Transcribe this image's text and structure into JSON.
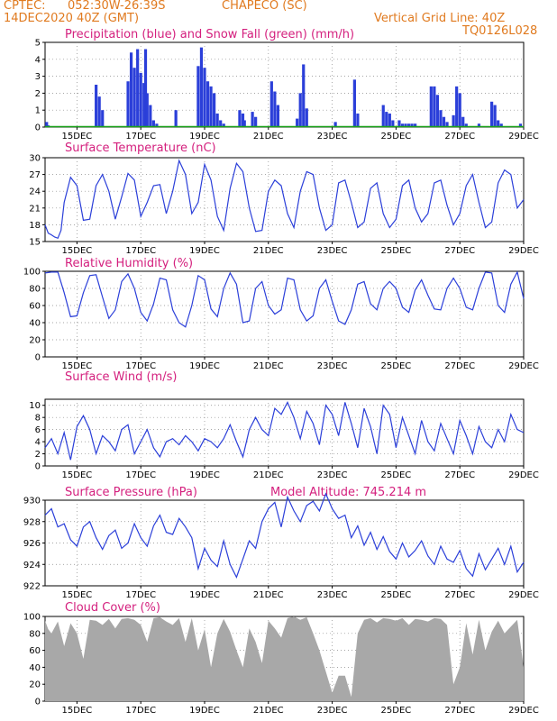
{
  "header": {
    "source": "CPTEC:",
    "coords": "052:30W-26:39S",
    "location": "CHAPECO (SC)",
    "run_time": "14DEC2020 40Z (GMT)",
    "grid_note": "Vertical Grid Line: 40Z",
    "code": "TQ0126L028"
  },
  "colors": {
    "header_text": "#e07a1f",
    "panel_title": "#d4207e",
    "series_line": "#2b3fd9",
    "snow": "#1aa31a",
    "cloud": "#a8a8a8",
    "grid": "#888888"
  },
  "x_axis": {
    "ticks": [
      "15DEC",
      "17DEC",
      "19DEC",
      "21DEC",
      "23DEC",
      "25DEC",
      "27DEC",
      "29DEC"
    ],
    "tick_days": [
      15,
      17,
      19,
      21,
      23,
      25,
      27,
      29
    ],
    "range": [
      14.0,
      29.0
    ]
  },
  "chart_data": [
    {
      "type": "bar",
      "title": "Precipitation (blue) and Snow Fall (green) (mm/h)",
      "ylim": [
        0,
        5
      ],
      "yticks": [
        0,
        1,
        2,
        3,
        4,
        5
      ],
      "grid": true,
      "series": [
        {
          "name": "Precipitation",
          "color": "#2b3fd9",
          "x": [
            14.05,
            14.1,
            15.6,
            15.7,
            15.8,
            16.6,
            16.7,
            16.8,
            16.9,
            17.0,
            17.1,
            17.15,
            17.2,
            17.3,
            17.4,
            17.5,
            18.1,
            18.8,
            18.9,
            19.0,
            19.1,
            19.2,
            19.3,
            19.4,
            19.5,
            19.6,
            20.1,
            20.2,
            20.25,
            20.5,
            20.6,
            21.1,
            21.2,
            21.3,
            21.9,
            22.0,
            22.1,
            22.2,
            23.1,
            23.7,
            23.8,
            24.6,
            24.7,
            24.8,
            24.9,
            25.1,
            25.2,
            25.3,
            25.4,
            25.5,
            25.6,
            26.1,
            26.2,
            26.3,
            26.4,
            26.5,
            26.6,
            26.8,
            26.9,
            27.0,
            27.1,
            27.2,
            27.6,
            28.0,
            28.1,
            28.2,
            28.3,
            28.9
          ],
          "values": [
            0.3,
            0.1,
            2.5,
            1.8,
            1.0,
            2.7,
            4.4,
            3.5,
            4.6,
            3.2,
            2.6,
            4.6,
            2.0,
            1.3,
            0.4,
            0.2,
            1.0,
            3.6,
            4.7,
            3.5,
            2.7,
            2.4,
            2.0,
            0.8,
            0.4,
            0.2,
            1.0,
            0.8,
            0.4,
            0.9,
            0.6,
            2.7,
            2.1,
            1.3,
            0.5,
            2.0,
            3.7,
            1.1,
            0.3,
            2.8,
            0.8,
            1.3,
            0.9,
            0.8,
            0.4,
            0.4,
            0.2,
            0.2,
            0.2,
            0.2,
            0.2,
            2.4,
            2.4,
            1.9,
            1.0,
            0.6,
            0.3,
            0.7,
            2.4,
            2.0,
            0.6,
            0.2,
            0.2,
            1.5,
            1.3,
            0.4,
            0.2,
            0.2
          ]
        },
        {
          "name": "Snow Fall",
          "color": "#1aa31a",
          "x": [
            14.0,
            29.0
          ],
          "values": [
            0,
            0
          ]
        }
      ]
    },
    {
      "type": "line",
      "title": "Surface Temperature (nC)",
      "ylim": [
        15,
        30
      ],
      "yticks": [
        15,
        18,
        21,
        24,
        27,
        30
      ],
      "grid": true,
      "series": [
        {
          "color": "#2b3fd9",
          "x": [
            14.0,
            14.1,
            14.2,
            14.3,
            14.4,
            14.5,
            14.6,
            14.8,
            15.0,
            15.2,
            15.4,
            15.6,
            15.8,
            16.0,
            16.2,
            16.4,
            16.6,
            16.8,
            17.0,
            17.2,
            17.4,
            17.6,
            17.8,
            18.0,
            18.2,
            18.4,
            18.6,
            18.8,
            19.0,
            19.2,
            19.4,
            19.6,
            19.8,
            20.0,
            20.2,
            20.4,
            20.6,
            20.8,
            21.0,
            21.2,
            21.4,
            21.6,
            21.8,
            22.0,
            22.2,
            22.4,
            22.6,
            22.8,
            23.0,
            23.2,
            23.4,
            23.6,
            23.8,
            24.0,
            24.2,
            24.4,
            24.6,
            24.8,
            25.0,
            25.2,
            25.4,
            25.6,
            25.8,
            26.0,
            26.2,
            26.4,
            26.6,
            26.8,
            27.0,
            27.2,
            27.4,
            27.6,
            27.8,
            28.0,
            28.2,
            28.4,
            28.6,
            28.8,
            29.0
          ],
          "values": [
            18.0,
            16.5,
            16.2,
            15.8,
            15.6,
            17.0,
            22.0,
            26.5,
            25.0,
            18.8,
            19.0,
            25.0,
            27.0,
            24.0,
            19.0,
            23.0,
            27.2,
            26.0,
            19.5,
            22.0,
            25.0,
            25.2,
            20.0,
            24.0,
            29.5,
            27.0,
            20.0,
            22.0,
            28.8,
            26.0,
            19.5,
            17.0,
            24.5,
            29.0,
            27.5,
            21.0,
            16.8,
            17.0,
            24.0,
            26.0,
            25.0,
            20.0,
            17.5,
            24.0,
            27.5,
            27.0,
            21.0,
            17.0,
            18.0,
            25.5,
            26.0,
            22.0,
            17.5,
            18.5,
            24.5,
            25.5,
            20.0,
            17.5,
            19.0,
            25.0,
            26.0,
            21.0,
            18.5,
            20.0,
            25.5,
            26.0,
            21.5,
            18.0,
            20.0,
            25.0,
            27.0,
            22.0,
            17.5,
            18.5,
            25.5,
            27.8,
            27.0,
            21.0,
            22.5
          ]
        }
      ]
    },
    {
      "type": "line",
      "title": "Relative Humidity (%)",
      "ylim": [
        0,
        100
      ],
      "yticks": [
        0,
        20,
        40,
        60,
        80,
        100
      ],
      "grid": true,
      "series": [
        {
          "color": "#2b3fd9",
          "x": [
            14.0,
            14.2,
            14.4,
            14.6,
            14.8,
            15.0,
            15.2,
            15.4,
            15.6,
            15.8,
            16.0,
            16.2,
            16.4,
            16.6,
            16.8,
            17.0,
            17.2,
            17.4,
            17.6,
            17.8,
            18.0,
            18.2,
            18.4,
            18.6,
            18.8,
            19.0,
            19.2,
            19.4,
            19.6,
            19.8,
            20.0,
            20.2,
            20.4,
            20.6,
            20.8,
            21.0,
            21.2,
            21.4,
            21.6,
            21.8,
            22.0,
            22.2,
            22.4,
            22.6,
            22.8,
            23.0,
            23.2,
            23.4,
            23.6,
            23.8,
            24.0,
            24.2,
            24.4,
            24.6,
            24.8,
            25.0,
            25.2,
            25.4,
            25.6,
            25.8,
            26.0,
            26.2,
            26.4,
            26.6,
            26.8,
            27.0,
            27.2,
            27.4,
            27.6,
            27.8,
            28.0,
            28.2,
            28.4,
            28.6,
            28.8,
            29.0
          ],
          "values": [
            98,
            99,
            99,
            75,
            47,
            48,
            75,
            95,
            96,
            70,
            45,
            55,
            88,
            97,
            80,
            52,
            42,
            62,
            92,
            90,
            55,
            40,
            35,
            60,
            95,
            90,
            56,
            47,
            80,
            98,
            85,
            40,
            42,
            80,
            88,
            60,
            50,
            55,
            92,
            90,
            55,
            42,
            48,
            80,
            90,
            65,
            42,
            38,
            55,
            85,
            88,
            62,
            55,
            80,
            88,
            80,
            58,
            52,
            78,
            90,
            72,
            56,
            55,
            80,
            92,
            80,
            58,
            55,
            80,
            99,
            98,
            60,
            52,
            85,
            99,
            68
          ]
        }
      ]
    },
    {
      "type": "line",
      "title": "Surface Wind (m/s)",
      "ylim": [
        0,
        11
      ],
      "yticks": [
        0,
        2,
        4,
        6,
        8,
        10
      ],
      "grid": true,
      "series": [
        {
          "color": "#2b3fd9",
          "x": [
            14.0,
            14.2,
            14.4,
            14.6,
            14.8,
            15.0,
            15.2,
            15.4,
            15.6,
            15.8,
            16.0,
            16.2,
            16.4,
            16.6,
            16.8,
            17.0,
            17.2,
            17.4,
            17.6,
            17.8,
            18.0,
            18.2,
            18.4,
            18.6,
            18.8,
            19.0,
            19.2,
            19.4,
            19.6,
            19.8,
            20.0,
            20.2,
            20.4,
            20.6,
            20.8,
            21.0,
            21.2,
            21.4,
            21.6,
            21.8,
            22.0,
            22.2,
            22.4,
            22.6,
            22.8,
            23.0,
            23.2,
            23.4,
            23.6,
            23.8,
            24.0,
            24.2,
            24.4,
            24.6,
            24.8,
            25.0,
            25.2,
            25.4,
            25.6,
            25.8,
            26.0,
            26.2,
            26.4,
            26.6,
            26.8,
            27.0,
            27.2,
            27.4,
            27.6,
            27.8,
            28.0,
            28.2,
            28.4,
            28.6,
            28.8,
            29.0
          ],
          "values": [
            3.0,
            4.5,
            2.0,
            5.5,
            1.0,
            6.5,
            8.3,
            6.0,
            2.0,
            5.0,
            4.0,
            2.5,
            6.0,
            6.8,
            2.0,
            4.0,
            6.0,
            3.0,
            1.5,
            4.0,
            4.5,
            3.5,
            5.0,
            4.0,
            2.5,
            4.5,
            4.0,
            3.0,
            4.5,
            6.8,
            4.0,
            1.5,
            6.0,
            8.0,
            6.0,
            5.0,
            9.5,
            8.5,
            10.5,
            8.0,
            4.5,
            9.0,
            7.0,
            3.5,
            10.0,
            8.5,
            5.0,
            10.5,
            7.0,
            3.0,
            9.5,
            6.5,
            2.0,
            10.0,
            8.5,
            3.0,
            8.0,
            5.0,
            2.0,
            7.5,
            4.0,
            2.5,
            7.0,
            4.5,
            2.0,
            7.5,
            5.0,
            2.0,
            6.5,
            4.0,
            3.0,
            6.0,
            4.0,
            8.5,
            6.0,
            5.5
          ]
        }
      ]
    },
    {
      "type": "line",
      "title": "Surface Pressure (hPa)",
      "subtitle": "Model Altitude: 745.214 m",
      "ylim": [
        922,
        930
      ],
      "yticks": [
        922,
        924,
        926,
        928,
        930
      ],
      "grid": true,
      "series": [
        {
          "color": "#2b3fd9",
          "x": [
            14.0,
            14.2,
            14.4,
            14.6,
            14.8,
            15.0,
            15.2,
            15.4,
            15.6,
            15.8,
            16.0,
            16.2,
            16.4,
            16.6,
            16.8,
            17.0,
            17.2,
            17.4,
            17.6,
            17.8,
            18.0,
            18.2,
            18.4,
            18.6,
            18.8,
            19.0,
            19.2,
            19.4,
            19.6,
            19.8,
            20.0,
            20.2,
            20.4,
            20.6,
            20.8,
            21.0,
            21.2,
            21.4,
            21.6,
            21.8,
            22.0,
            22.2,
            22.4,
            22.6,
            22.8,
            23.0,
            23.2,
            23.4,
            23.6,
            23.8,
            24.0,
            24.2,
            24.4,
            24.6,
            24.8,
            25.0,
            25.2,
            25.4,
            25.6,
            25.8,
            26.0,
            26.2,
            26.4,
            26.6,
            26.8,
            27.0,
            27.2,
            27.4,
            27.6,
            27.8,
            28.0,
            28.2,
            28.4,
            28.6,
            28.8,
            29.0
          ],
          "values": [
            928.6,
            929.2,
            927.5,
            927.8,
            926.3,
            925.7,
            927.5,
            928.0,
            926.5,
            925.4,
            926.7,
            927.2,
            925.5,
            926.0,
            927.8,
            926.5,
            925.7,
            927.6,
            928.6,
            927.0,
            926.8,
            928.3,
            927.5,
            926.5,
            923.6,
            925.5,
            924.4,
            923.8,
            926.2,
            924.0,
            922.8,
            924.5,
            926.2,
            925.5,
            928.0,
            929.2,
            929.8,
            927.5,
            930.3,
            929.0,
            928.0,
            929.5,
            929.9,
            929.0,
            930.6,
            929.2,
            928.3,
            928.6,
            926.5,
            927.6,
            925.8,
            927.0,
            925.4,
            926.6,
            925.2,
            924.5,
            926.0,
            924.7,
            925.3,
            926.2,
            924.8,
            924.0,
            925.7,
            924.5,
            924.2,
            925.3,
            923.6,
            922.9,
            925.0,
            923.5,
            924.5,
            925.5,
            924.0,
            925.7,
            923.3,
            924.2
          ]
        }
      ]
    },
    {
      "type": "area",
      "title": "Cloud Cover (%)",
      "ylim": [
        0,
        100
      ],
      "yticks": [
        0,
        20,
        40,
        60,
        80,
        100
      ],
      "grid": true,
      "series": [
        {
          "color": "#a8a8a8",
          "x": [
            14.0,
            14.1,
            14.2,
            14.4,
            14.6,
            14.8,
            15.0,
            15.2,
            15.4,
            15.6,
            15.8,
            16.0,
            16.2,
            16.4,
            16.6,
            16.8,
            17.0,
            17.2,
            17.4,
            17.6,
            17.8,
            18.0,
            18.2,
            18.4,
            18.6,
            18.8,
            19.0,
            19.2,
            19.4,
            19.6,
            19.8,
            20.0,
            20.2,
            20.4,
            20.6,
            20.8,
            21.0,
            21.2,
            21.4,
            21.6,
            21.8,
            22.0,
            22.2,
            22.4,
            22.6,
            22.8,
            23.0,
            23.2,
            23.4,
            23.6,
            23.8,
            24.0,
            24.2,
            24.4,
            24.6,
            24.8,
            25.0,
            25.2,
            25.4,
            25.6,
            25.8,
            26.0,
            26.2,
            26.4,
            26.6,
            26.8,
            27.0,
            27.2,
            27.4,
            27.6,
            27.8,
            28.0,
            28.2,
            28.4,
            28.6,
            28.8,
            29.0
          ],
          "values": [
            95,
            85,
            80,
            94,
            65,
            92,
            80,
            50,
            96,
            95,
            90,
            97,
            86,
            97,
            98,
            96,
            90,
            70,
            98,
            99,
            94,
            90,
            98,
            70,
            98,
            60,
            85,
            40,
            80,
            97,
            82,
            60,
            40,
            86,
            70,
            45,
            95,
            86,
            75,
            98,
            100,
            96,
            99,
            80,
            60,
            35,
            10,
            30,
            30,
            5,
            80,
            96,
            98,
            93,
            98,
            97,
            95,
            98,
            90,
            97,
            96,
            94,
            98,
            97,
            90,
            20,
            40,
            92,
            55,
            96,
            60,
            82,
            95,
            80,
            88,
            96,
            40
          ]
        }
      ]
    }
  ]
}
